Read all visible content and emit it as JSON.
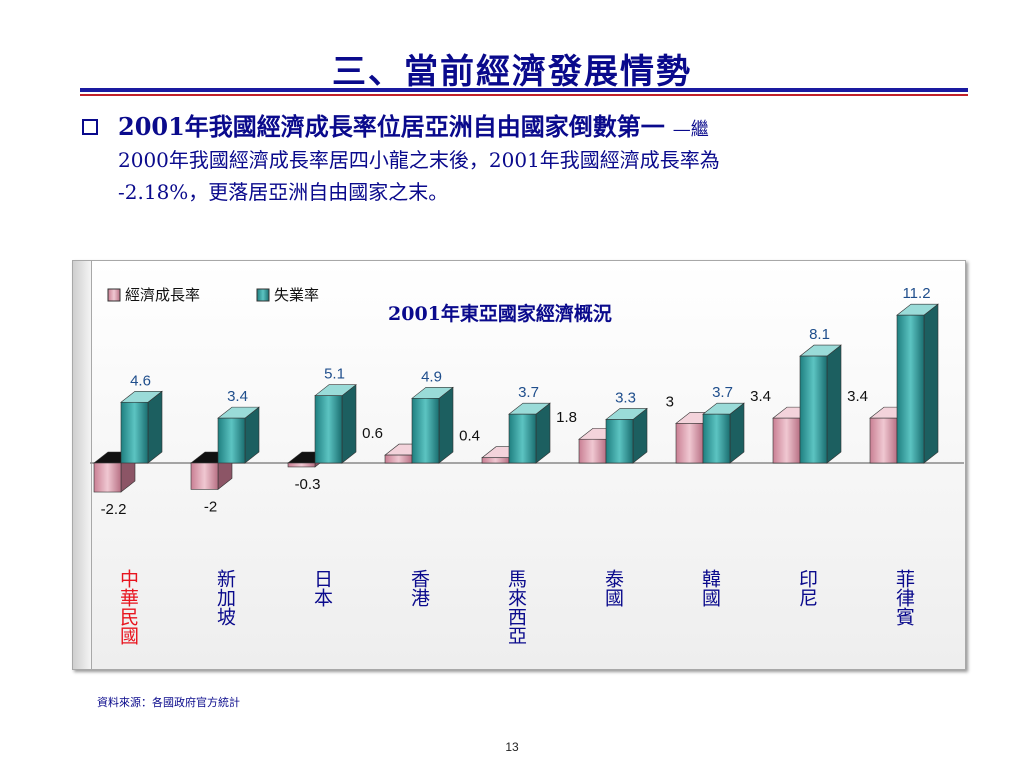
{
  "slide": {
    "title": "三、當前經濟發展情勢",
    "lead": "2001年我國經濟成長率位居亞洲自由國家倒數第一",
    "dash": "—繼",
    "body_line1": "2000年我國經濟成長率居四小龍之末後，2001年我國經濟成長率為",
    "body_line2": "-2.18%，更落居亞洲自由國家之末。",
    "source": "資料來源：各國政府官方統計",
    "page_number": "13"
  },
  "colors": {
    "title_blue": "#0a0a8c",
    "growth_front": "#e8b4c0",
    "unemp_front": "#3aa6a6",
    "taiwan_label": "#e8141e"
  },
  "chart_data": {
    "type": "bar",
    "title": "2001年東亞國家經濟概況",
    "categories": [
      "中華民國",
      "新加坡",
      "日本",
      "香港",
      "馬來西亞",
      "泰國",
      "韓國",
      "印尼",
      "菲律賓"
    ],
    "series": [
      {
        "name": "經濟成長率",
        "values": [
          -2.2,
          -2,
          -0.3,
          0.6,
          0.4,
          1.8,
          3,
          3.4,
          3.4
        ]
      },
      {
        "name": "失業率",
        "values": [
          4.6,
          3.4,
          5.1,
          4.9,
          3.7,
          3.3,
          3.7,
          8.1,
          11.2
        ]
      }
    ],
    "legend_position": "top-left",
    "grid": false,
    "highlight_category": "中華民國"
  }
}
